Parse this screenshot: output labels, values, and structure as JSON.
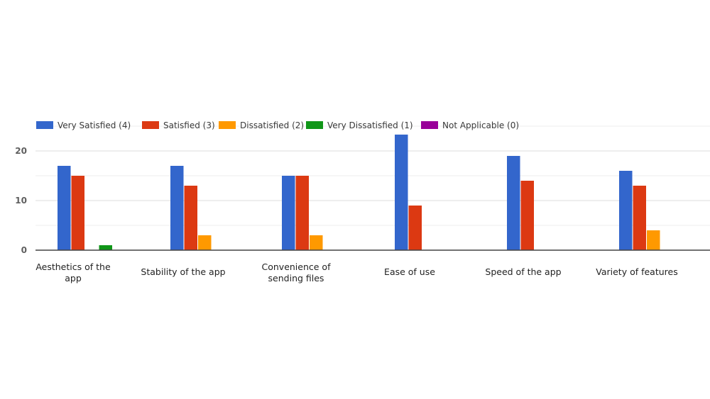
{
  "chart_data": {
    "type": "bar",
    "categories": [
      [
        "Aesthetics of the",
        "app"
      ],
      [
        "Stability of the app"
      ],
      [
        "Convenience of",
        "sending files"
      ],
      [
        "Ease of use"
      ],
      [
        "Speed of the app"
      ],
      [
        "Variety of features"
      ]
    ],
    "series": [
      {
        "name": "Very Satisfied (4)",
        "color": "#3366cc",
        "values": [
          17,
          17,
          15,
          23.3,
          19,
          16
        ]
      },
      {
        "name": "Satisfied (3)",
        "color": "#dc3912",
        "values": [
          15,
          13,
          15,
          9,
          14,
          13
        ]
      },
      {
        "name": "Dissatisfied (2)",
        "color": "#ff9900",
        "values": [
          0,
          3,
          3,
          0,
          0,
          4
        ]
      },
      {
        "name": "Very Dissatisfied (1)",
        "color": "#109618",
        "values": [
          1,
          0,
          0,
          0,
          0,
          0
        ]
      },
      {
        "name": "Not Applicable (0)",
        "color": "#990099",
        "values": [
          0,
          0,
          0,
          0,
          0,
          0
        ]
      }
    ],
    "yticks": [
      "0",
      "10",
      "20"
    ],
    "ylim": [
      0,
      25
    ],
    "grid": true,
    "legend_position": "top"
  }
}
